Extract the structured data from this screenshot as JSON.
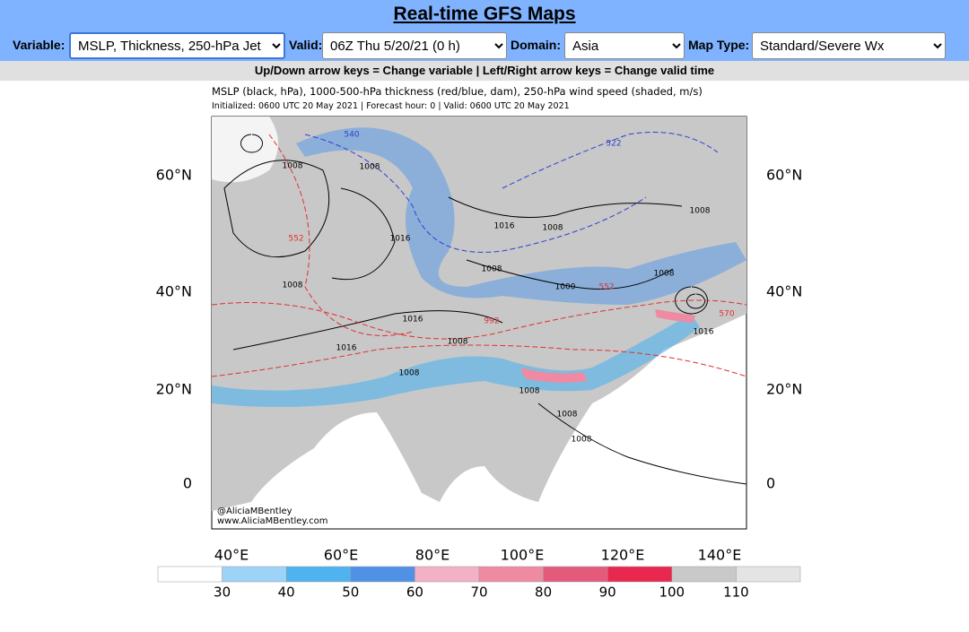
{
  "header": {
    "title": "Real-time GFS Maps"
  },
  "controls": [
    {
      "label": "Variable:",
      "value": "MSLP, Thickness, 250-hPa Jet"
    },
    {
      "label": "Valid:",
      "value": "06Z Thu 5/20/21 (0 h)"
    },
    {
      "label": "Domain:",
      "value": "Asia"
    },
    {
      "label": "Map Type:",
      "value": "Standard/Severe Wx"
    }
  ],
  "hint": "Up/Down arrow keys = Change variable | Left/Right arrow keys = Change valid time",
  "map": {
    "caption": "MSLP (black, hPa), 1000-500-hPa thickness (red/blue, dam), 250-hPa wind speed (shaded, m/s)",
    "subcaption": "Initialized: 0600 UTC 20 May 2021 | Forecast hour: 0 | Valid: 0600 UTC 20 May 2021",
    "lat_labels": [
      "60°N",
      "40°N",
      "20°N",
      "0"
    ],
    "lon_labels": [
      "40°E",
      "60°E",
      "80°E",
      "100°E",
      "120°E",
      "140°E"
    ],
    "credit": [
      "@AliciaMBentley",
      "www.AliciaMBentley.com"
    ],
    "contour_labels": [
      "540",
      "1008",
      "1008",
      "1016",
      "552",
      "1008",
      "1016",
      "1016",
      "1008",
      "1008",
      "1000",
      "552",
      "1008",
      "1008",
      "1016",
      "1008",
      "1008",
      "1008",
      "1008",
      "570",
      "1016",
      "522",
      "1008",
      "992"
    ]
  },
  "colorbar": {
    "ticks": [
      30,
      40,
      50,
      60,
      70,
      80,
      90,
      100,
      110
    ],
    "colors": [
      "#ffffff",
      "#9dd3f7",
      "#4fb3ef",
      "#5091e6",
      "#f3b1c5",
      "#ee8aa1",
      "#e45a7a",
      "#e8284f",
      "#c9c9c9",
      "#e4e4e4"
    ]
  }
}
